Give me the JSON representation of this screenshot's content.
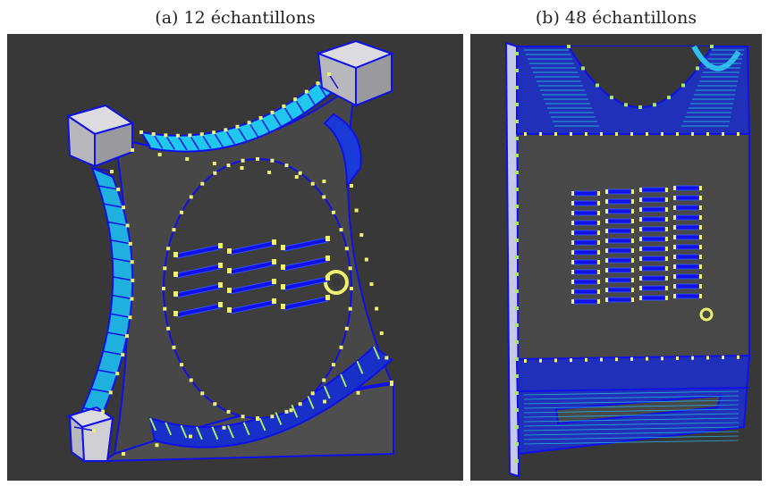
{
  "figure": {
    "panel_a": {
      "caption": "(a)  12 échantillons",
      "sample_rows": 4,
      "sample_cols": 3
    },
    "panel_b": {
      "caption": "(b)  48 échantillons",
      "sample_rows": 12,
      "sample_cols": 4
    }
  },
  "colors": {
    "background": "#383838",
    "face": "#4a4a4a",
    "edge_blue": "#1010e8",
    "cyan": "#20c8f0",
    "marker_yellow": "#f0f070",
    "marker_green": "#a8e860",
    "block": "#c8c8cc"
  }
}
